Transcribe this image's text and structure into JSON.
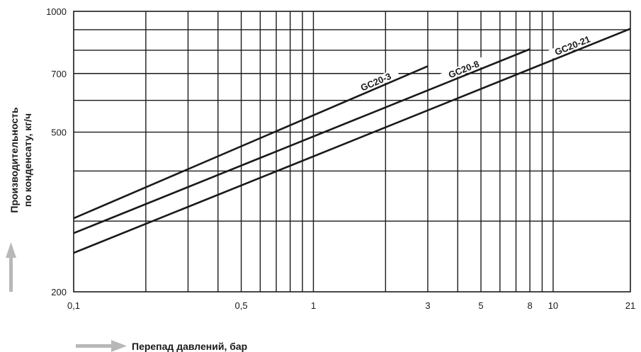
{
  "chart_data": {
    "type": "line",
    "xscale": "log",
    "yscale": "log",
    "xlim": [
      0.1,
      21
    ],
    "ylim": [
      200,
      1000
    ],
    "xlabel": "Перепад давлений, бар",
    "ylabel_line1": "Производительность",
    "ylabel_line2": "по конденсату, кг/ч",
    "x_ticks": [
      {
        "v": 0.1,
        "label": "0,1"
      },
      {
        "v": 0.5,
        "label": "0,5"
      },
      {
        "v": 1,
        "label": "1"
      },
      {
        "v": 3,
        "label": "3"
      },
      {
        "v": 5,
        "label": "5"
      },
      {
        "v": 8,
        "label": "8"
      },
      {
        "v": 10,
        "label": "10"
      },
      {
        "v": 21,
        "label": "21"
      }
    ],
    "y_ticks": [
      {
        "v": 200,
        "label": "200"
      },
      {
        "v": 500,
        "label": "500"
      },
      {
        "v": 700,
        "label": "700"
      },
      {
        "v": 1000,
        "label": "1000"
      }
    ],
    "x_grid": [
      0.2,
      0.3,
      0.4,
      0.5,
      0.6,
      0.7,
      0.8,
      0.9,
      1,
      2,
      3,
      4,
      5,
      6,
      7,
      8,
      9,
      10
    ],
    "y_grid": [
      300,
      400,
      500,
      600,
      700,
      800,
      900
    ],
    "grid": true,
    "series": [
      {
        "name": "GC20-3",
        "x": [
          0.1,
          3
        ],
        "y": [
          305,
          730
        ]
      },
      {
        "name": "GC20-8",
        "x": [
          0.1,
          8
        ],
        "y": [
          280,
          805
        ]
      },
      {
        "name": "GC20-21",
        "x": [
          0.1,
          21
        ],
        "y": [
          250,
          905
        ]
      }
    ],
    "colors": {
      "line": "#1a1a1a",
      "arrow": "#b8b8b8"
    }
  }
}
